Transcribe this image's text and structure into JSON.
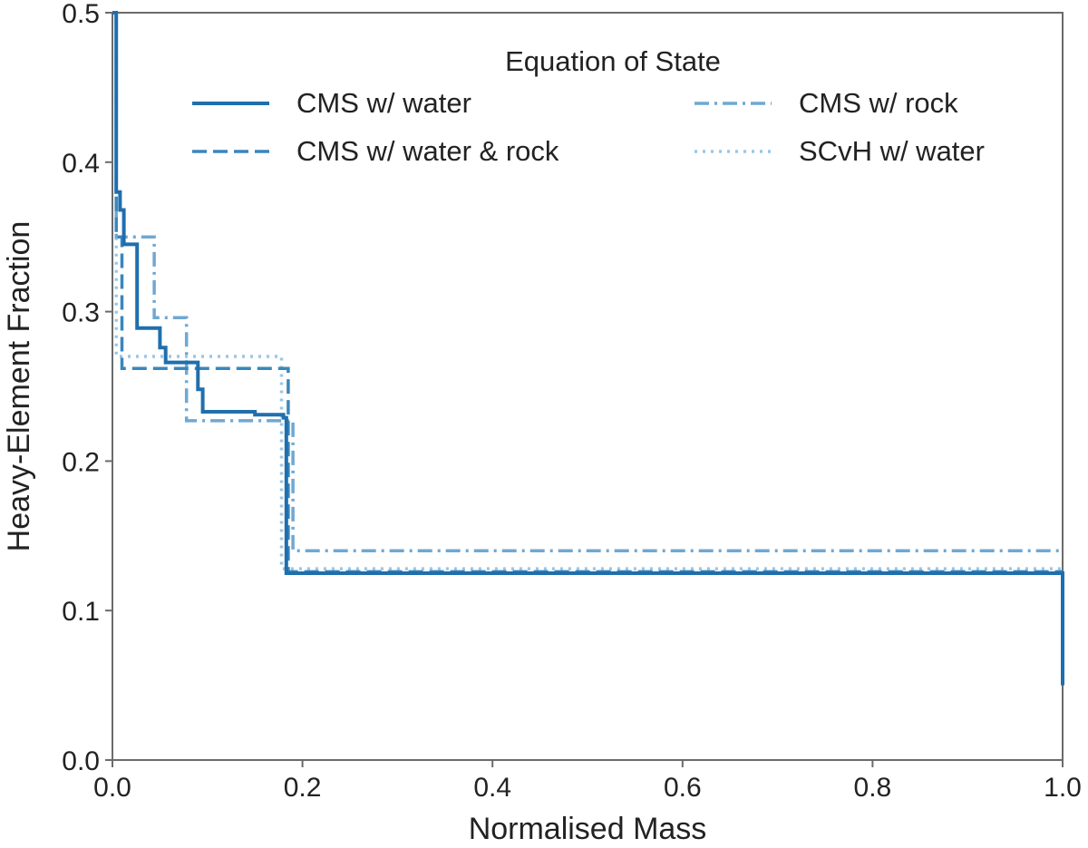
{
  "chart_data": {
    "type": "line",
    "title": "",
    "xlabel": "Normalised Mass",
    "ylabel": "Heavy-Element Fraction",
    "xlim": [
      0.0,
      1.0
    ],
    "ylim": [
      0.0,
      0.5
    ],
    "xticks": [
      "0.0",
      "0.2",
      "0.4",
      "0.6",
      "0.8",
      "1.0"
    ],
    "yticks": [
      "0.0",
      "0.1",
      "0.2",
      "0.3",
      "0.4",
      "0.5"
    ],
    "grid": false,
    "legend": {
      "title": "Equation of State",
      "placement": "top-right"
    },
    "series": [
      {
        "name": "CMS w/ water",
        "color": "#1f6fae",
        "style": "solid",
        "x": [
          0.0,
          0.004,
          0.004,
          0.008,
          0.008,
          0.012,
          0.012,
          0.018,
          0.018,
          0.026,
          0.026,
          0.034,
          0.034,
          0.05,
          0.05,
          0.056,
          0.056,
          0.09,
          0.09,
          0.095,
          0.095,
          0.15,
          0.15,
          0.18,
          0.18,
          0.183,
          0.183,
          1.0,
          1.0
        ],
        "y": [
          0.5,
          0.5,
          0.38,
          0.38,
          0.368,
          0.368,
          0.345,
          0.345,
          0.345,
          0.345,
          0.289,
          0.289,
          0.289,
          0.289,
          0.276,
          0.276,
          0.266,
          0.266,
          0.248,
          0.248,
          0.233,
          0.233,
          0.231,
          0.231,
          0.229,
          0.229,
          0.125,
          0.125,
          0.05
        ]
      },
      {
        "name": "CMS w/ water & rock",
        "color": "#3a86bd",
        "style": "dashed",
        "x": [
          0.0,
          0.004,
          0.004,
          0.01,
          0.01,
          0.185,
          0.185,
          1.0
        ],
        "y": [
          0.5,
          0.5,
          0.35,
          0.35,
          0.262,
          0.262,
          0.126,
          0.126
        ]
      },
      {
        "name": "CMS w/ rock",
        "color": "#6fa8d2",
        "style": "dashdot",
        "x": [
          0.0,
          0.004,
          0.004,
          0.036,
          0.036,
          0.044,
          0.044,
          0.078,
          0.078,
          0.18,
          0.18,
          0.19,
          0.19,
          1.0
        ],
        "y": [
          0.5,
          0.5,
          0.35,
          0.35,
          0.35,
          0.35,
          0.296,
          0.296,
          0.227,
          0.227,
          0.227,
          0.227,
          0.14,
          0.14
        ]
      },
      {
        "name": "SCvH w/ water",
        "color": "#9ac6e6",
        "style": "dotted",
        "x": [
          0.0,
          0.004,
          0.004,
          0.035,
          0.035,
          0.175,
          0.175,
          0.178,
          0.178,
          1.0
        ],
        "y": [
          0.5,
          0.5,
          0.27,
          0.27,
          0.27,
          0.27,
          0.27,
          0.27,
          0.128,
          0.128
        ]
      }
    ]
  }
}
